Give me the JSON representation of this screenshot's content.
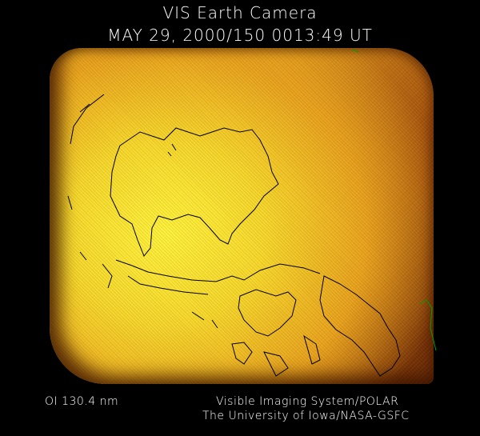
{
  "header": {
    "title": "VIS Earth Camera",
    "timestamp": "MAY 29, 2000/150 0013:49 UT"
  },
  "footer": {
    "filter": "OI  130.4 nm",
    "instrument": "Visible Imaging System/POLAR",
    "institution": "The University of Iowa/NASA-GSFC"
  },
  "colors": {
    "background": "#000000",
    "bright": "#fff23a",
    "dark": "#6a2a05",
    "coastline": "#000000",
    "limb_trace": "#00a000"
  }
}
